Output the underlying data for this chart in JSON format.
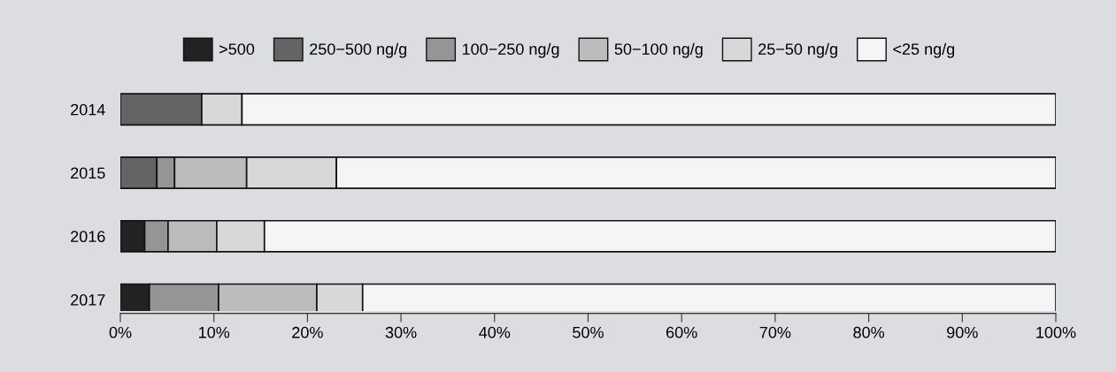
{
  "chart_data": {
    "type": "bar",
    "orientation": "horizontal",
    "stacked": true,
    "categories": [
      "2014",
      "2015",
      "2016",
      "2017"
    ],
    "series": [
      {
        "name": ">500",
        "color": "#222222",
        "values": [
          0,
          0,
          2.6,
          3.1
        ]
      },
      {
        "name": "250−500 ng/g",
        "color": "#646464",
        "values": [
          8.7,
          3.9,
          0,
          0
        ]
      },
      {
        "name": "100−250 ng/g",
        "color": "#959595",
        "values": [
          0,
          1.9,
          2.5,
          7.4
        ]
      },
      {
        "name": "50−100 ng/g",
        "color": "#bcbcbc",
        "values": [
          0,
          7.7,
          5.2,
          10.5
        ]
      },
      {
        "name": "25−50 ng/g",
        "color": "#d8d8d8",
        "values": [
          4.3,
          9.6,
          5.1,
          4.9
        ]
      },
      {
        "name": "<25 ng/g",
        "color": "#f5f5f5",
        "values": [
          87.0,
          76.9,
          84.6,
          74.1
        ]
      }
    ],
    "xlim": [
      0,
      100
    ],
    "xticks": [
      {
        "value": 0,
        "label": "0%"
      },
      {
        "value": 10,
        "label": "10%"
      },
      {
        "value": 20,
        "label": "20%"
      },
      {
        "value": 30,
        "label": "30%"
      },
      {
        "value": 40,
        "label": "40%"
      },
      {
        "value": 50,
        "label": "50%"
      },
      {
        "value": 60,
        "label": "60%"
      },
      {
        "value": 70,
        "label": "70%"
      },
      {
        "value": 80,
        "label": "80%"
      },
      {
        "value": 90,
        "label": "90%"
      },
      {
        "value": 100,
        "label": "100%"
      }
    ],
    "grid": false,
    "legend": "top"
  }
}
